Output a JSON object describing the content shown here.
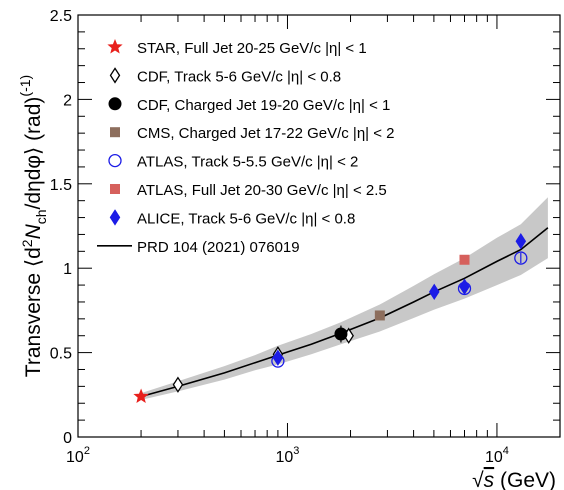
{
  "chart_data": {
    "type": "scatter",
    "x_scale": "log",
    "xlim": [
      100,
      20000
    ],
    "ylim": [
      0,
      2.5
    ],
    "xlabel_pre": "√",
    "xlabel_var": "s",
    "xlabel_unit": " (GeV)",
    "ylabel": "Transverse ⟨d²N_ch/dηdφ⟩ (rad)^(-1)",
    "x_ticks": [
      {
        "value": 100,
        "base": "10",
        "exp": "2"
      },
      {
        "value": 1000,
        "base": "10",
        "exp": "3"
      },
      {
        "value": 10000,
        "base": "10",
        "exp": "4"
      }
    ],
    "y_ticks": [
      {
        "value": 0,
        "label": "0"
      },
      {
        "value": 0.5,
        "label": "0.5"
      },
      {
        "value": 1,
        "label": "1"
      },
      {
        "value": 1.5,
        "label": "1.5"
      },
      {
        "value": 2,
        "label": "2"
      },
      {
        "value": 2.5,
        "label": "2.5"
      }
    ],
    "legend_position": "top-left",
    "band_color": "#c8c8c8",
    "series": [
      {
        "name": "STAR, Full Jet 20-25  GeV/c |η| < 1",
        "marker": "star",
        "color": "#e8201c",
        "points": [
          {
            "x": 200,
            "y": 0.24,
            "err": 0
          }
        ]
      },
      {
        "name": "CDF, Track 5-6 GeV/c |η| < 0.8",
        "marker": "open-diamond",
        "color": "#000000",
        "points": [
          {
            "x": 300,
            "y": 0.31,
            "err": 0.02
          },
          {
            "x": 900,
            "y": 0.49,
            "err": 0.03
          },
          {
            "x": 1960,
            "y": 0.6,
            "err": 0.03
          }
        ]
      },
      {
        "name": "CDF, Charged Jet 19-20 GeV/c |η| < 1",
        "marker": "filled-circle",
        "color": "#000000",
        "points": [
          {
            "x": 1800,
            "y": 0.61,
            "err": 0.05
          }
        ]
      },
      {
        "name": "CMS, Charged Jet 17-22 GeV/c |η| < 2",
        "marker": "filled-square",
        "color": "#8d6e5d",
        "points": [
          {
            "x": 2760,
            "y": 0.72,
            "err": 0
          }
        ]
      },
      {
        "name": "ATLAS, Track 5-5.5 GeV/c |η| < 2",
        "marker": "open-circle",
        "color": "#1c1ce6",
        "points": [
          {
            "x": 900,
            "y": 0.45,
            "err": 0.02
          },
          {
            "x": 7000,
            "y": 0.88,
            "err": 0.03
          },
          {
            "x": 13000,
            "y": 1.06,
            "err": 0.03
          }
        ]
      },
      {
        "name": "ATLAS, Full Jet 20-30  GeV/c |η| < 2.5",
        "marker": "filled-square",
        "color": "#d6605c",
        "points": [
          {
            "x": 7000,
            "y": 1.05,
            "err": 0
          }
        ]
      },
      {
        "name": "ALICE, Track 5-6 GeV/c |η| < 0.8",
        "marker": "filled-diamond",
        "color": "#1c1ce6",
        "points": [
          {
            "x": 900,
            "y": 0.47,
            "err": 0.02
          },
          {
            "x": 5020,
            "y": 0.86,
            "err": 0.02
          },
          {
            "x": 7000,
            "y": 0.89,
            "err": 0.03
          },
          {
            "x": 13000,
            "y": 1.16,
            "err": 0.04
          }
        ]
      }
    ],
    "curve": {
      "name": "PRD 104 (2021) 076019",
      "color": "#000000",
      "x": [
        200,
        300,
        500,
        700,
        900,
        1300,
        1800,
        2760,
        4000,
        5020,
        7000,
        10000,
        13000,
        17500
      ],
      "y": [
        0.24,
        0.3,
        0.38,
        0.44,
        0.485,
        0.55,
        0.615,
        0.705,
        0.8,
        0.86,
        0.94,
        1.04,
        1.11,
        1.24
      ],
      "band_lo": [
        0.22,
        0.27,
        0.34,
        0.395,
        0.43,
        0.49,
        0.55,
        0.625,
        0.705,
        0.755,
        0.82,
        0.9,
        0.96,
        1.06
      ],
      "band_hi": [
        0.26,
        0.33,
        0.42,
        0.485,
        0.54,
        0.61,
        0.68,
        0.785,
        0.895,
        0.965,
        1.06,
        1.18,
        1.26,
        1.42
      ]
    }
  }
}
